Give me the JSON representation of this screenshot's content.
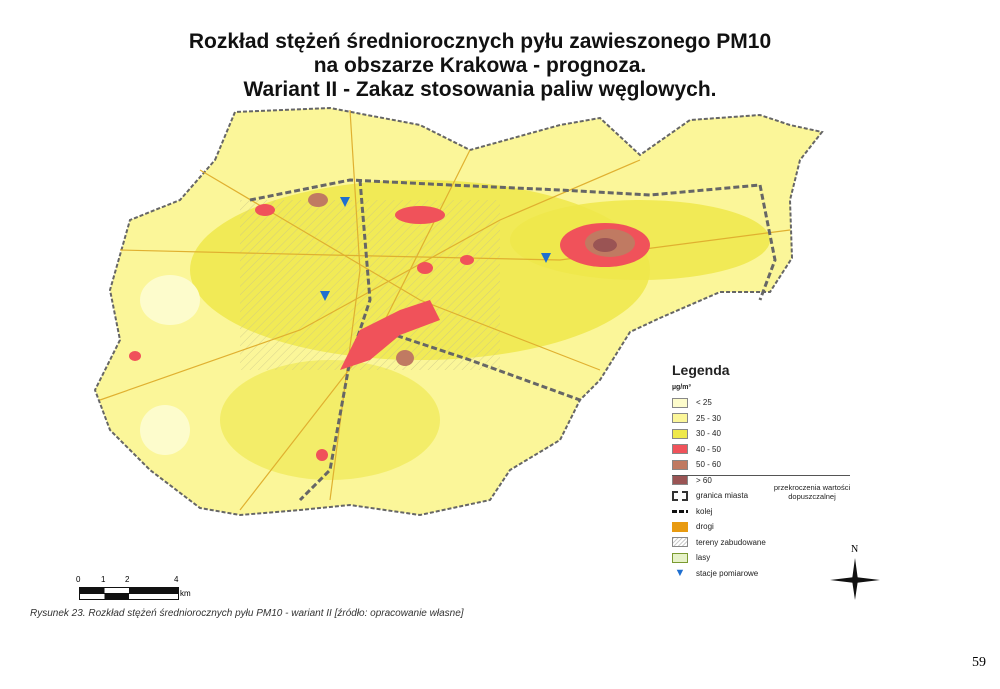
{
  "title_lines": [
    "Rozkład stężeń średniorocznych pyłu zawieszonego PM10",
    "na obszarze Krakowa - prognoza.",
    "Wariant II - Zakaz stosowania paliw węglowych."
  ],
  "legend": {
    "title": "Legenda",
    "unit": "µg/m³",
    "classes": [
      {
        "label": "< 25",
        "color": "#fdfccc"
      },
      {
        "label": "25 - 30",
        "color": "#fbf699"
      },
      {
        "label": "30 - 40",
        "color": "#eee84a"
      },
      {
        "label": "40 - 50",
        "color": "#f0525a"
      },
      {
        "label": "50 - 60",
        "color": "#c07a62"
      },
      {
        "label": "> 60",
        "color": "#9a5454"
      }
    ],
    "exceed_note": "przekroczenia wartości dopuszczalnej",
    "symbols": [
      {
        "label": "granica miasta",
        "icon": "city-boundary-icon"
      },
      {
        "label": "kolej",
        "icon": "railway-icon"
      },
      {
        "label": "drogi",
        "icon": "road-icon",
        "color": "#e89a10"
      },
      {
        "label": "tereny zabudowane",
        "icon": "built-up-hatch-icon"
      },
      {
        "label": "lasy",
        "icon": "forest-icon"
      },
      {
        "label": "stacje pomiarowe",
        "icon": "station-icon",
        "color": "#1f6fd0"
      }
    ]
  },
  "north": "N",
  "scale": {
    "ticks": [
      "0",
      "1",
      "2",
      "4"
    ],
    "unit": "km"
  },
  "caption": "Rysunek 23. Rozkład stężeń średniorocznych pyłu PM10 - wariant II [źródło: opracowanie własne]",
  "page_number": "59"
}
